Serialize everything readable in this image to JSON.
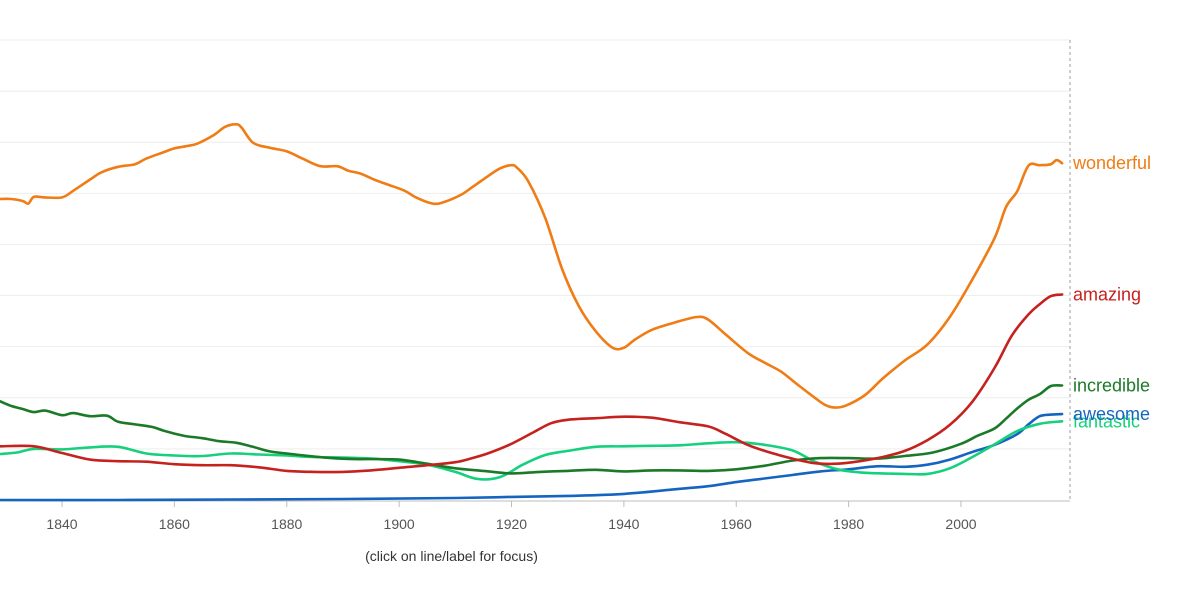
{
  "hint": "(click on line/label for focus)",
  "chart_data": {
    "type": "line",
    "title": "",
    "xlabel": "",
    "ylabel": "",
    "xlim": [
      1829,
      2019
    ],
    "ylim": [
      0,
      9
    ],
    "grid": true,
    "x_ticks": [
      1840,
      1860,
      1880,
      1900,
      1920,
      1940,
      1960,
      1980,
      2000
    ],
    "y_gridlines": [
      1,
      2,
      3,
      4,
      5,
      6,
      7,
      8,
      9
    ],
    "series": [
      {
        "name": "wonderful",
        "color": "#ef7c14",
        "x": [
          1829,
          1831,
          1833,
          1834,
          1835,
          1837,
          1840,
          1842,
          1845,
          1847,
          1850,
          1853,
          1855,
          1858,
          1860,
          1862,
          1864,
          1867,
          1869,
          1871,
          1872,
          1874,
          1877,
          1880,
          1883,
          1886,
          1889,
          1891,
          1893,
          1896,
          1898,
          1901,
          1903,
          1906,
          1908,
          1911,
          1913,
          1916,
          1918,
          1920,
          1921,
          1923,
          1926,
          1929,
          1932,
          1935,
          1938,
          1940,
          1942,
          1945,
          1949,
          1953,
          1955,
          1958,
          1962,
          1965,
          1968,
          1971,
          1974,
          1976,
          1978,
          1980,
          1983,
          1986,
          1990,
          1994,
          1998,
          2002,
          2006,
          2008,
          2010,
          2012,
          2014,
          2016,
          2017,
          2018
        ],
        "values": [
          5.89,
          5.89,
          5.85,
          5.8,
          5.93,
          5.92,
          5.92,
          6.05,
          6.27,
          6.41,
          6.52,
          6.57,
          6.68,
          6.8,
          6.88,
          6.92,
          6.97,
          7.14,
          7.3,
          7.35,
          7.28,
          6.99,
          6.89,
          6.82,
          6.67,
          6.53,
          6.53,
          6.44,
          6.39,
          6.25,
          6.17,
          6.05,
          5.92,
          5.8,
          5.83,
          5.97,
          6.12,
          6.35,
          6.49,
          6.55,
          6.5,
          6.23,
          5.52,
          4.52,
          3.79,
          3.3,
          2.98,
          2.98,
          3.14,
          3.33,
          3.47,
          3.58,
          3.53,
          3.25,
          2.88,
          2.69,
          2.51,
          2.25,
          2.0,
          1.85,
          1.81,
          1.87,
          2.06,
          2.37,
          2.73,
          3.04,
          3.58,
          4.31,
          5.13,
          5.73,
          6.04,
          6.54,
          6.55,
          6.57,
          6.65,
          6.59
        ]
      },
      {
        "name": "amazing",
        "color": "#c5221f",
        "x": [
          1829,
          1835,
          1840,
          1845,
          1850,
          1855,
          1860,
          1865,
          1870,
          1875,
          1880,
          1885,
          1890,
          1895,
          1900,
          1905,
          1910,
          1913,
          1916,
          1920,
          1924,
          1927,
          1930,
          1935,
          1940,
          1945,
          1950,
          1955,
          1958,
          1962,
          1966,
          1970,
          1974,
          1978,
          1982,
          1986,
          1990,
          1994,
          1998,
          2002,
          2006,
          2009,
          2012,
          2014,
          2016,
          2018
        ],
        "values": [
          1.05,
          1.05,
          0.92,
          0.79,
          0.76,
          0.75,
          0.7,
          0.68,
          0.68,
          0.64,
          0.57,
          0.55,
          0.55,
          0.58,
          0.63,
          0.68,
          0.74,
          0.82,
          0.92,
          1.1,
          1.33,
          1.5,
          1.57,
          1.6,
          1.63,
          1.61,
          1.52,
          1.44,
          1.3,
          1.08,
          0.93,
          0.81,
          0.72,
          0.71,
          0.76,
          0.84,
          0.96,
          1.17,
          1.47,
          1.92,
          2.59,
          3.21,
          3.63,
          3.83,
          3.99,
          4.02
        ]
      },
      {
        "name": "incredible",
        "color": "#1b7a28",
        "x": [
          1829,
          1831,
          1833,
          1835,
          1837,
          1840,
          1842,
          1845,
          1848,
          1850,
          1853,
          1856,
          1858,
          1860,
          1862,
          1865,
          1868,
          1871,
          1874,
          1877,
          1880,
          1884,
          1888,
          1892,
          1896,
          1900,
          1905,
          1910,
          1915,
          1920,
          1925,
          1930,
          1935,
          1940,
          1945,
          1950,
          1955,
          1960,
          1965,
          1970,
          1975,
          1980,
          1985,
          1990,
          1995,
          2000,
          2003,
          2006,
          2008,
          2010,
          2012,
          2014,
          2016,
          2018
        ],
        "values": [
          1.93,
          1.84,
          1.78,
          1.72,
          1.75,
          1.66,
          1.7,
          1.64,
          1.65,
          1.53,
          1.48,
          1.43,
          1.36,
          1.3,
          1.25,
          1.21,
          1.15,
          1.12,
          1.04,
          0.95,
          0.91,
          0.86,
          0.82,
          0.8,
          0.8,
          0.79,
          0.71,
          0.62,
          0.57,
          0.52,
          0.55,
          0.57,
          0.59,
          0.56,
          0.58,
          0.58,
          0.57,
          0.6,
          0.67,
          0.77,
          0.82,
          0.82,
          0.81,
          0.86,
          0.93,
          1.1,
          1.26,
          1.4,
          1.59,
          1.79,
          1.96,
          2.07,
          2.23,
          2.24
        ]
      },
      {
        "name": "fantastic",
        "color": "#17d07e",
        "x": [
          1829,
          1832,
          1835,
          1840,
          1845,
          1850,
          1855,
          1860,
          1865,
          1870,
          1875,
          1880,
          1885,
          1890,
          1895,
          1900,
          1905,
          1910,
          1914,
          1918,
          1922,
          1926,
          1930,
          1935,
          1940,
          1945,
          1950,
          1955,
          1960,
          1965,
          1970,
          1974,
          1978,
          1982,
          1986,
          1990,
          1994,
          1998,
          2002,
          2006,
          2010,
          2014,
          2018
        ],
        "values": [
          0.9,
          0.93,
          1.0,
          0.99,
          1.03,
          1.04,
          0.91,
          0.87,
          0.86,
          0.91,
          0.89,
          0.87,
          0.84,
          0.83,
          0.81,
          0.76,
          0.69,
          0.55,
          0.41,
          0.45,
          0.69,
          0.88,
          0.96,
          1.04,
          1.05,
          1.06,
          1.07,
          1.11,
          1.13,
          1.08,
          0.97,
          0.75,
          0.6,
          0.54,
          0.52,
          0.51,
          0.51,
          0.62,
          0.84,
          1.09,
          1.35,
          1.49,
          1.54
        ]
      },
      {
        "name": "awesome",
        "color": "#1565c0",
        "x": [
          1829,
          1850,
          1870,
          1890,
          1910,
          1920,
          1930,
          1940,
          1950,
          1955,
          1960,
          1965,
          1970,
          1975,
          1980,
          1985,
          1990,
          1994,
          1998,
          2002,
          2006,
          2010,
          2012,
          2014,
          2016,
          2018
        ],
        "values": [
          0.0,
          0.0,
          0.01,
          0.02,
          0.04,
          0.06,
          0.08,
          0.12,
          0.22,
          0.27,
          0.35,
          0.42,
          0.49,
          0.56,
          0.6,
          0.66,
          0.65,
          0.69,
          0.79,
          0.94,
          1.08,
          1.29,
          1.48,
          1.64,
          1.67,
          1.68
        ]
      }
    ]
  }
}
